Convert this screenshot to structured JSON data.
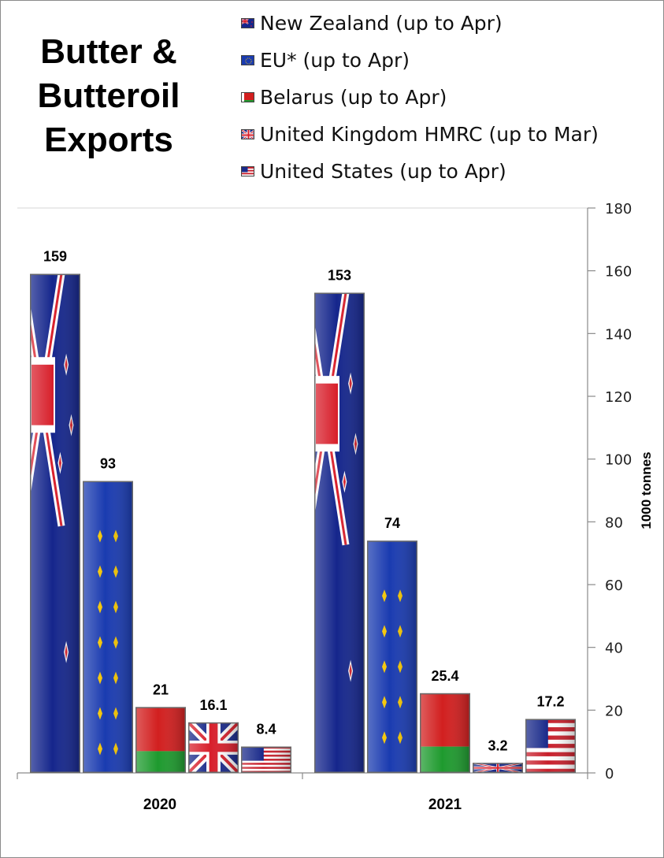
{
  "title_lines": [
    "Butter &",
    "Butteroil",
    "Exports"
  ],
  "legend": [
    {
      "label": "New Zealand (up to Apr)",
      "flag": "new-zealand-flag"
    },
    {
      "label": "EU* (up to Apr)",
      "flag": "eu-flag"
    },
    {
      "label": "Belarus (up to Apr)",
      "flag": "belarus-flag"
    },
    {
      "label": "United Kingdom HMRC (up to Mar)",
      "flag": "uk-flag"
    },
    {
      "label": "United States (up to Apr)",
      "flag": "us-flag"
    }
  ],
  "chart_data": {
    "type": "bar",
    "title": "Butter & Butteroil Exports",
    "categories": [
      "2020",
      "2021"
    ],
    "series": [
      {
        "name": "New Zealand (up to Apr)",
        "flag": "new-zealand-flag",
        "values": [
          159,
          153
        ],
        "labels": [
          "159",
          "153"
        ]
      },
      {
        "name": "EU* (up to Apr)",
        "flag": "eu-flag",
        "values": [
          93,
          74
        ],
        "labels": [
          "93",
          "74"
        ]
      },
      {
        "name": "Belarus (up to Apr)",
        "flag": "belarus-flag",
        "values": [
          21,
          25.4
        ],
        "labels": [
          "21",
          "25.4"
        ]
      },
      {
        "name": "United Kingdom HMRC (up to Mar)",
        "flag": "uk-flag",
        "values": [
          16.1,
          3.2
        ],
        "labels": [
          "16.1",
          "3.2"
        ]
      },
      {
        "name": "United States (up to Apr)",
        "flag": "us-flag",
        "values": [
          8.4,
          17.2
        ],
        "labels": [
          "8.4",
          "17.2"
        ]
      }
    ],
    "ylabel": "1000 tonnes",
    "ylim": [
      0,
      180
    ],
    "yticks": [
      0,
      20,
      40,
      60,
      80,
      100,
      120,
      140,
      160,
      180
    ],
    "y_axis_side": "right",
    "legend_position": "top",
    "grid": false
  }
}
